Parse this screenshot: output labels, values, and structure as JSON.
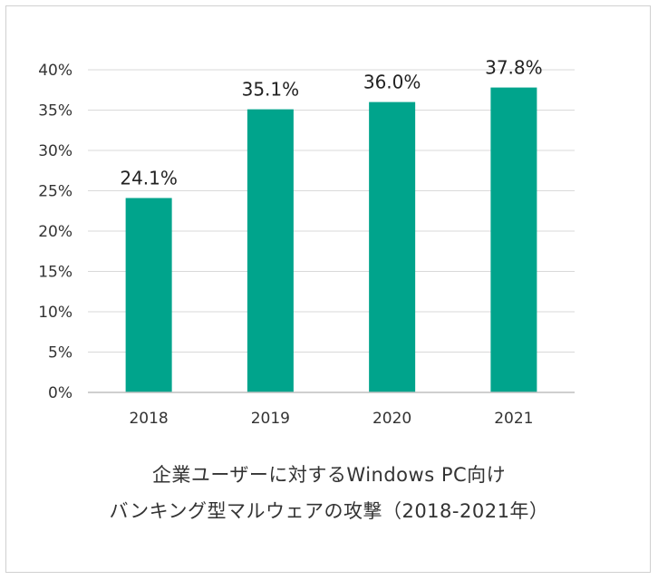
{
  "chart_data": {
    "type": "bar",
    "categories": [
      "2018",
      "2019",
      "2020",
      "2021"
    ],
    "values": [
      24.1,
      35.1,
      36.0,
      37.8
    ],
    "data_labels": [
      "24.1%",
      "35.1%",
      "36.0%",
      "37.8%"
    ],
    "title_lines": [
      "企業ユーザーに対するWindows PC向け",
      "バンキング型マルウェアの攻撃（2018-2021年）"
    ],
    "xlabel": "",
    "ylabel": "",
    "ylim": [
      0,
      40
    ],
    "yticks": [
      "0%",
      "5%",
      "10%",
      "15%",
      "20%",
      "25%",
      "30%",
      "35%",
      "40%"
    ],
    "grid": true,
    "bar_color": "#00a48c",
    "grid_color": "#d9d9d9",
    "axis_color": "#bfbfbf"
  }
}
